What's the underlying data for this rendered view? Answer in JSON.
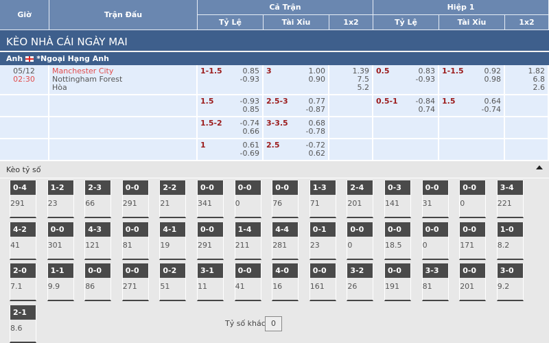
{
  "header": {
    "gio": "Giờ",
    "tran_dau": "Trận Đấu",
    "ca_tran": "Cả Trận",
    "hiep1": "Hiệp 1",
    "ty_le": "Tỷ Lệ",
    "tai_xiu": "Tài Xỉu",
    "x12": "1x2"
  },
  "title": "KÈO NHÀ CÁI NGÀY MAI",
  "league": {
    "country": "Anh",
    "name": "*Ngoại Hạng Anh"
  },
  "match": {
    "date": "05/12",
    "time": "02:30",
    "home": "Manchester City",
    "away": "Nottingham Forest",
    "draw": "Hòa"
  },
  "rows": [
    {
      "ft_hc": "1-1.5",
      "ft_hc_o": [
        "0.85",
        "-0.93"
      ],
      "ft_ou": "3",
      "ft_ou_o": [
        "1.00",
        "0.90"
      ],
      "ft_1x2": [
        "1.39",
        "7.5",
        "5.2"
      ],
      "h1_hc": "0.5",
      "h1_hc_o": [
        "0.83",
        "-0.93"
      ],
      "h1_ou": "1-1.5",
      "h1_ou_o": [
        "0.92",
        "0.98"
      ],
      "h1_1x2": [
        "1.82",
        "6.8",
        "2.6"
      ]
    },
    {
      "ft_hc": "1.5",
      "ft_hc_o": [
        "-0.93",
        "0.85"
      ],
      "ft_ou": "2.5-3",
      "ft_ou_o": [
        "0.77",
        "-0.87"
      ],
      "h1_hc": "0.5-1",
      "h1_hc_o": [
        "-0.84",
        "0.74"
      ],
      "h1_ou": "1.5",
      "h1_ou_o": [
        "0.64",
        "-0.74"
      ]
    },
    {
      "ft_hc": "1.5-2",
      "ft_hc_o": [
        "-0.74",
        "0.66"
      ],
      "ft_ou": "3-3.5",
      "ft_ou_o": [
        "0.68",
        "-0.78"
      ]
    },
    {
      "ft_hc": "1",
      "ft_hc_o": [
        "0.61",
        "-0.69"
      ],
      "ft_ou": "2.5",
      "ft_ou_o": [
        "-0.72",
        "0.62"
      ]
    }
  ],
  "score_panel": {
    "title": "Kèo tỷ số",
    "other_label": "Tỷ số khác",
    "other_value": "0",
    "scores": [
      [
        "0-4",
        "291"
      ],
      [
        "1-2",
        "23"
      ],
      [
        "2-3",
        "66"
      ],
      [
        "0-0",
        "291"
      ],
      [
        "2-2",
        "21"
      ],
      [
        "0-0",
        "341"
      ],
      [
        "0-0",
        "0"
      ],
      [
        "0-0",
        "76"
      ],
      [
        "1-3",
        "71"
      ],
      [
        "2-4",
        "201"
      ],
      [
        "0-3",
        "141"
      ],
      [
        "0-0",
        "31"
      ],
      [
        "0-0",
        "0"
      ],
      [
        "3-4",
        "221"
      ],
      [
        "4-2",
        "41"
      ],
      [
        "0-0",
        "301"
      ],
      [
        "4-3",
        "121"
      ],
      [
        "0-0",
        "81"
      ],
      [
        "4-1",
        "19"
      ],
      [
        "0-0",
        "291"
      ],
      [
        "1-4",
        "211"
      ],
      [
        "4-4",
        "281"
      ],
      [
        "0-1",
        "23"
      ],
      [
        "0-0",
        "0"
      ],
      [
        "0-0",
        "18.5"
      ],
      [
        "0-0",
        "0"
      ],
      [
        "0-0",
        "171"
      ],
      [
        "1-0",
        "8.2"
      ],
      [
        "2-0",
        "7.1"
      ],
      [
        "1-1",
        "9.9"
      ],
      [
        "0-0",
        "86"
      ],
      [
        "0-0",
        "271"
      ],
      [
        "0-2",
        "51"
      ],
      [
        "3-1",
        "11"
      ],
      [
        "0-0",
        "41"
      ],
      [
        "4-0",
        "16"
      ],
      [
        "0-0",
        "161"
      ],
      [
        "3-2",
        "26"
      ],
      [
        "0-0",
        "191"
      ],
      [
        "3-3",
        "81"
      ],
      [
        "0-0",
        "201"
      ],
      [
        "3-0",
        "9.2"
      ],
      [
        "2-1",
        "8.6"
      ]
    ]
  }
}
